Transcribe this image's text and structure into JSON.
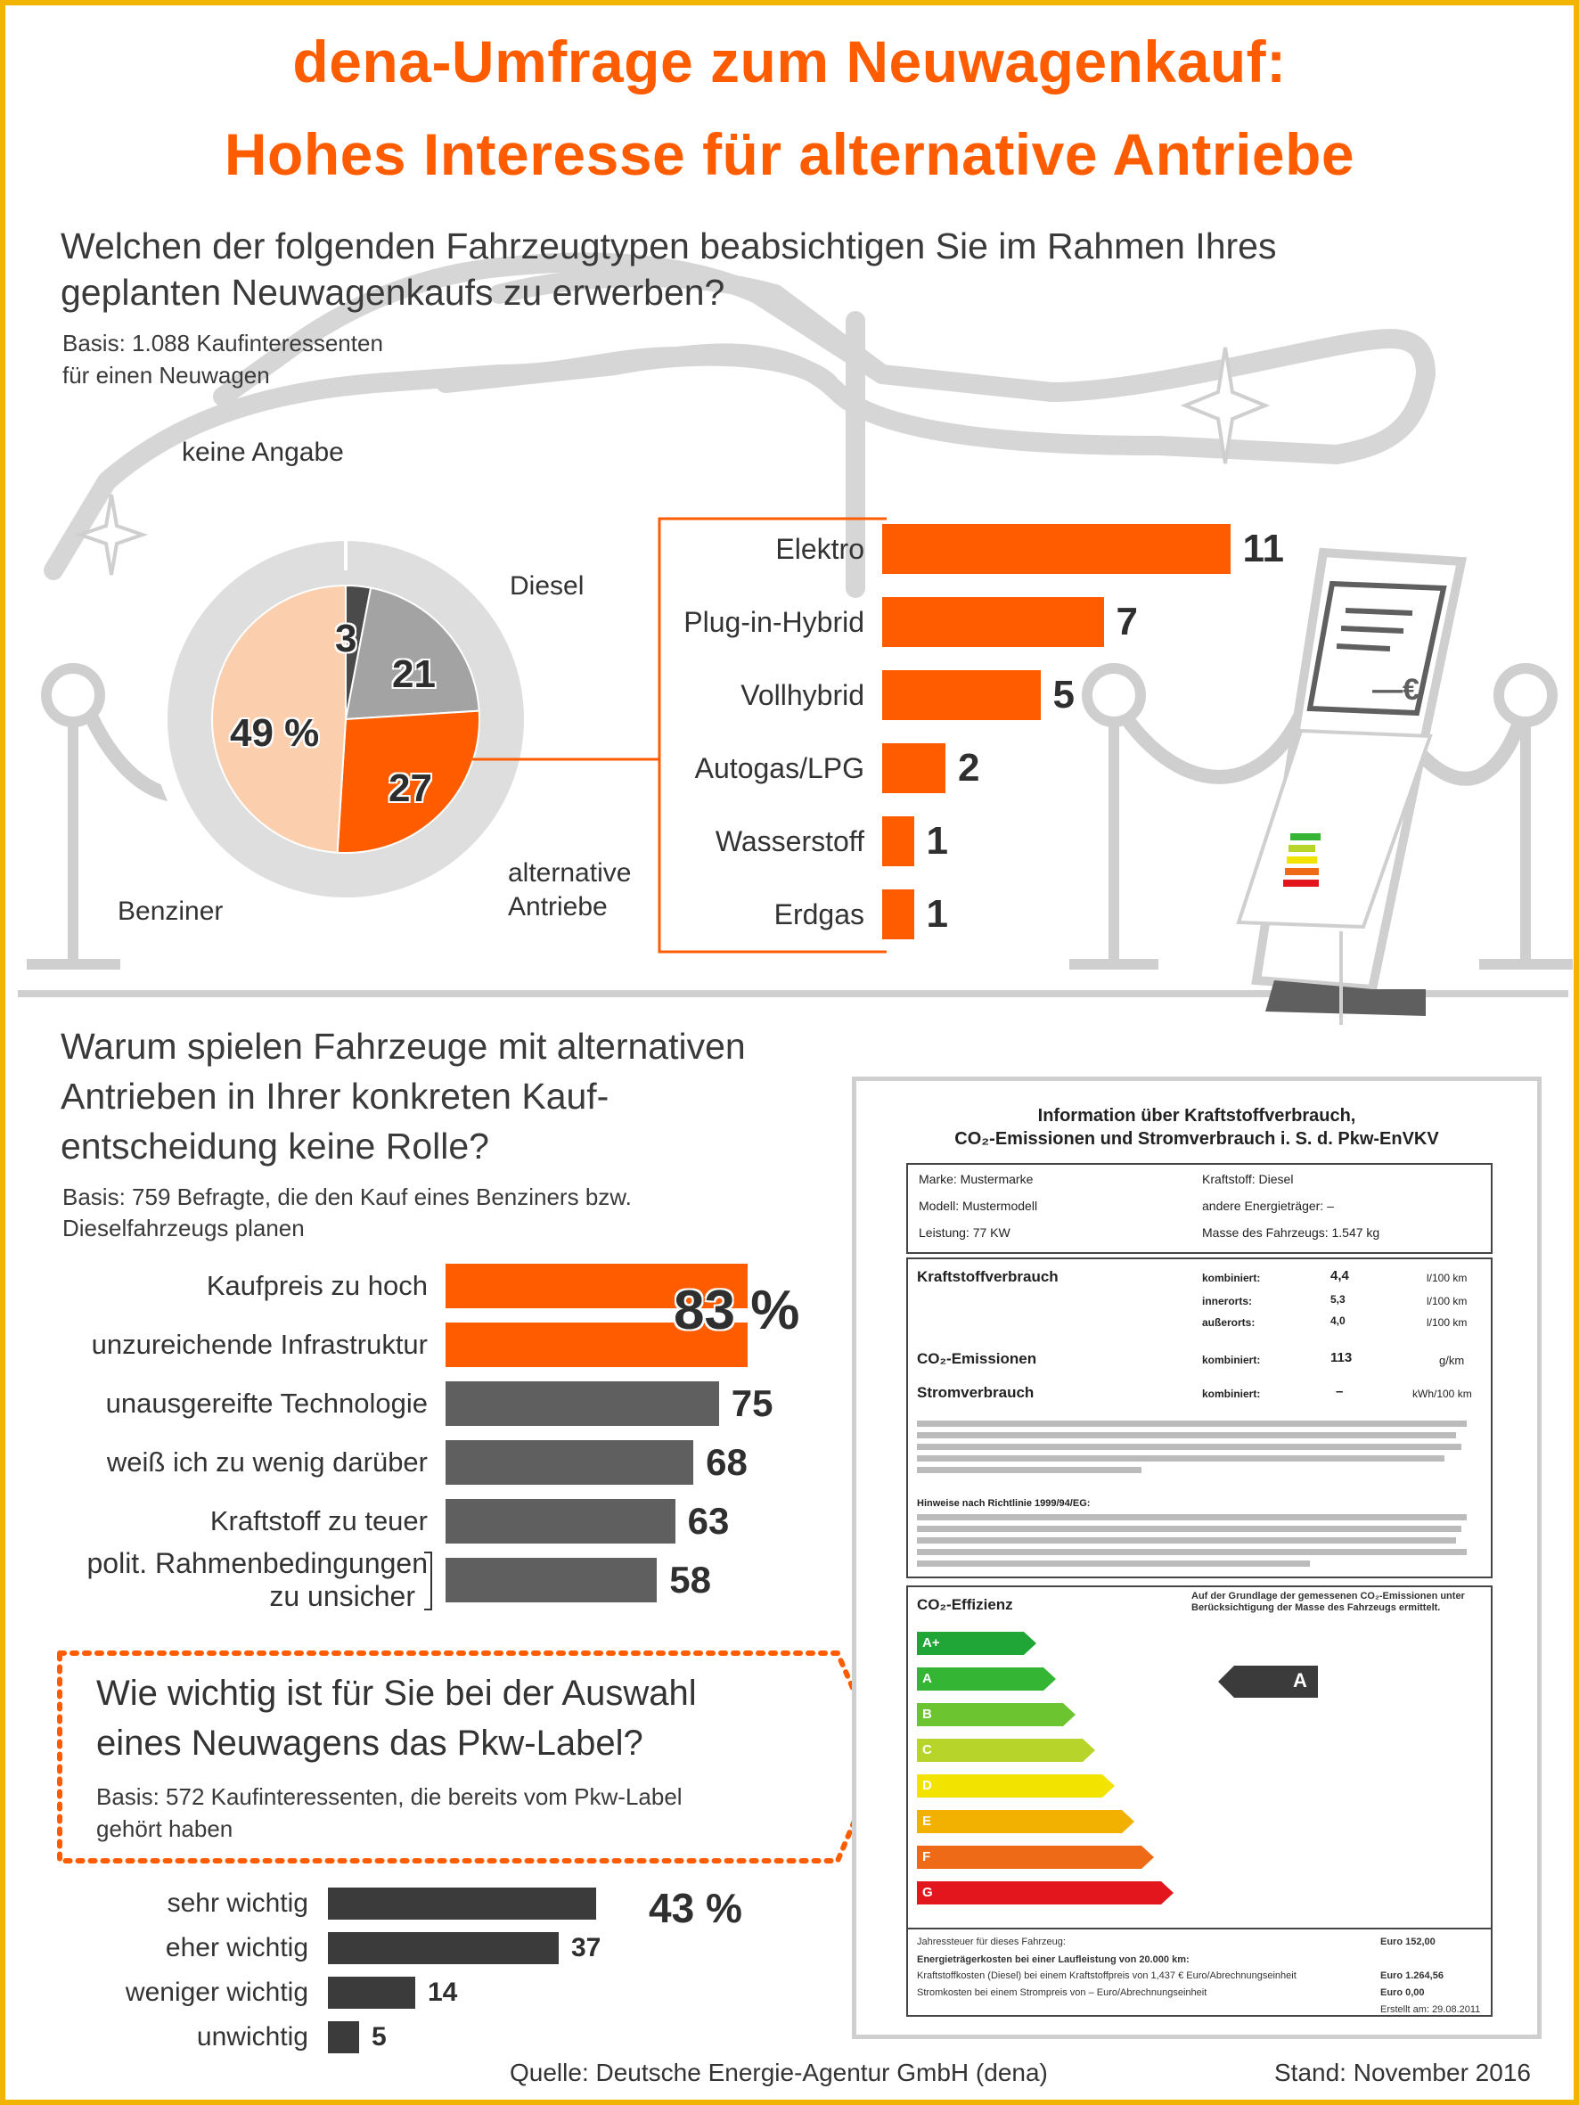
{
  "title": {
    "line1": "dena-Umfrage zum Neuwagenkauf:",
    "line2": "Hohes Interesse für alternative Antriebe"
  },
  "q1": {
    "question_line1": "Welchen der folgenden Fahrzeugtypen beabsichtigen Sie im Rahmen Ihres",
    "question_line2": "geplanten Neuwagenkaufs zu erwerben?",
    "basis_line1": "Basis: 1.088 Kaufinteressenten",
    "basis_line2": "für einen Neuwagen",
    "labels": {
      "keine_angabe": "keine Angabe",
      "diesel": "Diesel",
      "benziner": "Benziner",
      "alternative_line1": "alternative",
      "alternative_line2": "Antriebe",
      "benziner_value": "49 %"
    }
  },
  "q2": {
    "question_line1": "Warum spielen Fahrzeuge mit alternativen",
    "question_line2": "Antrieben in Ihrer konkreten Kauf-",
    "question_line3": "entscheidung keine Rolle?",
    "basis_line1": "Basis: 759 Befragte, die den Kauf eines Benziners bzw.",
    "basis_line2": "Dieselfahrzeugs planen",
    "polit_line1": "polit. Rahmenbedingungen",
    "polit_line2": "zu unsicher",
    "top_value": "83 %"
  },
  "q3": {
    "question_line1": "Wie wichtig ist für Sie bei der Auswahl",
    "question_line2": "eines Neuwagens das Pkw-Label?",
    "basis_line1": "Basis: 572 Kaufinteressenten, die bereits vom Pkw-Label",
    "basis_line2": "gehört haben",
    "top_value": "43 %"
  },
  "label_card": {
    "heading1": "Information über Kraftstoffverbrauch,",
    "heading2": "CO₂-Emissionen und Stromverbrauch i. S. d. Pkw-EnVKV",
    "marke": "Marke: Mustermarke",
    "modell": "Modell: Mustermodell",
    "leistung": "Leistung: 77 KW",
    "kraftstoff": "Kraftstoff: Diesel",
    "andere": "andere Energieträger: –",
    "masse": "Masse des Fahrzeugs: 1.547 kg",
    "verbrauch_label": "Kraftstoffverbrauch",
    "kombiniert": "kombiniert:",
    "innerorts": "innerorts:",
    "ausserorts": "außerorts:",
    "v_komb": "4,4",
    "v_inner": "5,3",
    "v_ausser": "4,0",
    "unit_100km": "l/100 km",
    "co2_label": "CO₂-Emissionen",
    "co2_value": "113",
    "co2_unit": "g/km",
    "strom_label": "Stromverbrauch",
    "strom_value": "–",
    "strom_unit": "kWh/100 km",
    "note_heading": "Hinweise nach Richtlinie 1999/94/EG:",
    "effizienz_label": "CO₂-Effizienz",
    "effizienz_note": "Auf der Grundlage der gemessenen CO₂-Emissionen unter Berücksichtigung der Masse des Fahrzeugs ermittelt.",
    "classes": [
      "A+",
      "A",
      "B",
      "C",
      "D",
      "E",
      "F",
      "G"
    ],
    "class_colors": [
      "#1fa637",
      "#35b534",
      "#6cc530",
      "#b6d42a",
      "#f2e400",
      "#f2b100",
      "#ee6a16",
      "#e3161d"
    ],
    "rating": "A",
    "steuer_label": "Jahressteuer für dieses Fahrzeug:",
    "steuer_value": "Euro 152,00",
    "energie_label": "Energieträgerkosten bei einer Laufleistung von 20.000 km:",
    "kraftstoffkosten": "Kraftstoffkosten (Diesel) bei einem Kraftstoffpreis von 1,437 € Euro/Abrechnungseinheit",
    "kraftstoffkosten_value": "Euro 1.264,56",
    "stromkosten": "Stromkosten bei einem Strompreis von – Euro/Abrechnungseinheit",
    "stromkosten_value": "Euro 0,00",
    "erstellt": "Erstellt am: 29.08.2011"
  },
  "footer": {
    "source": "Quelle: Deutsche Energie-Agentur GmbH (dena)",
    "stand": "Stand: November 2016"
  },
  "colors": {
    "orange": "#ff5c00",
    "grey_bar": "#5f5f5f",
    "dark_bar": "#3b3b3b",
    "peach": "#fbcfae",
    "pie_grey": "#a3a3a3",
    "pie_dark": "#4a4a4a",
    "outline_grey": "#d3d3d3"
  },
  "chart_data": [
    {
      "type": "pie",
      "categories": [
        "keine Angabe",
        "Diesel",
        "alternative Antriebe",
        "Benziner"
      ],
      "values": [
        3,
        21,
        27,
        49
      ],
      "unit": "%"
    },
    {
      "type": "bar",
      "orientation": "horizontal",
      "categories": [
        "Elektro",
        "Plug-in-Hybrid",
        "Vollhybrid",
        "Autogas/LPG",
        "Wasserstoff",
        "Erdgas"
      ],
      "values": [
        11,
        7,
        5,
        2,
        1,
        1
      ],
      "unit": "%"
    },
    {
      "type": "bar",
      "orientation": "horizontal",
      "categories": [
        "Kaufpreis zu hoch",
        "unzureichende Infrastruktur",
        "unausgereifte Technologie",
        "weiß ich zu wenig darüber",
        "Kraftstoff zu teuer",
        "polit. Rahmenbedingungen zu unsicher"
      ],
      "values": [
        83,
        83,
        75,
        68,
        63,
        58
      ],
      "unit": "%"
    },
    {
      "type": "bar",
      "orientation": "horizontal",
      "categories": [
        "sehr wichtig",
        "eher wichtig",
        "weniger wichtig",
        "unwichtig"
      ],
      "values": [
        43,
        37,
        14,
        5
      ],
      "unit": "%"
    }
  ]
}
